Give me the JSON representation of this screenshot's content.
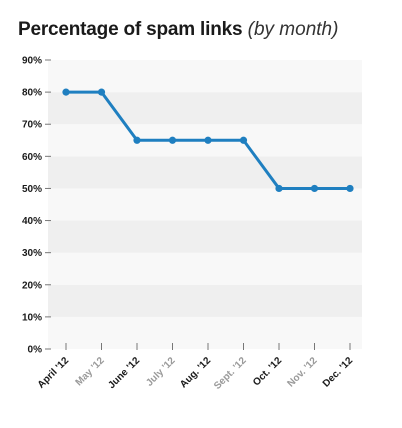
{
  "chart": {
    "title": "Percentage of spam links",
    "subtitle": "(by month)"
  },
  "chart_data": {
    "type": "line",
    "title": "Percentage of spam links",
    "subtitle": "(by month)",
    "xlabel": "",
    "ylabel": "",
    "categories": [
      "April '12",
      "May '12",
      "June '12",
      "July '12",
      "Aug. '12",
      "Sept. '12",
      "Oct. '12",
      "Nov. '12",
      "Dec. '12"
    ],
    "series": [
      {
        "values": [
          80,
          80,
          65,
          65,
          65,
          65,
          50,
          50,
          50
        ]
      }
    ],
    "ylim": [
      0,
      90
    ],
    "yticks": [
      0,
      10,
      20,
      30,
      40,
      50,
      60,
      70,
      80,
      90
    ],
    "ytick_labels": [
      "0%",
      "10%",
      "20%",
      "30%",
      "40%",
      "50%",
      "60%",
      "70%",
      "80%",
      "90%"
    ],
    "grid": "alternating horizontal bands",
    "legend": "none"
  },
  "colors": {
    "line": "#1f7fc0",
    "band_dark": "#efefef",
    "band_light": "#f8f8f8",
    "tick_label_strong": "#1a1a1a",
    "tick_label_muted": "#9a9a9a",
    "tick_mark": "#777777"
  }
}
